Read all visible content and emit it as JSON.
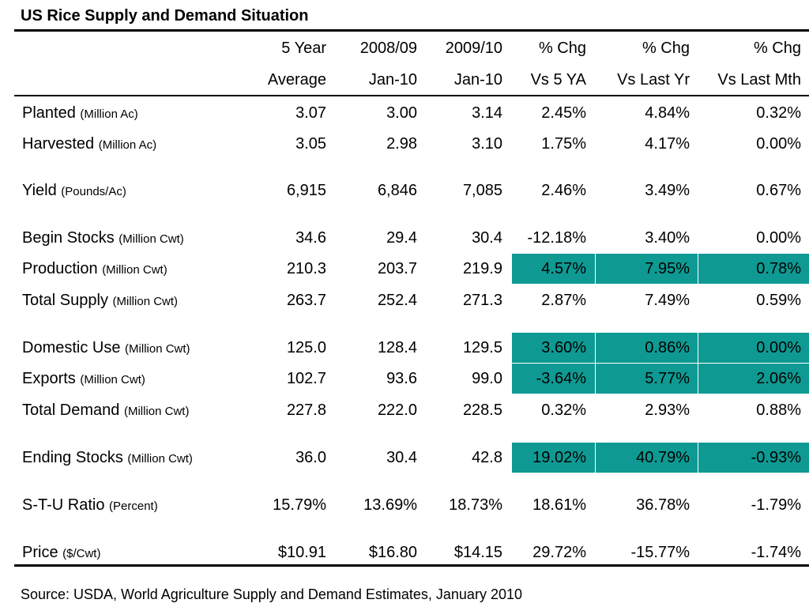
{
  "title": "US Rice Supply and Demand Situation",
  "highlight_color": "#0e9a93",
  "header": {
    "top": [
      "5 Year",
      "2008/09",
      "2009/10",
      "% Chg",
      "% Chg",
      "% Chg"
    ],
    "bottom": [
      "Average",
      "Jan-10",
      "Jan-10",
      "Vs 5 YA",
      "Vs Last Yr",
      "Vs Last Mth"
    ]
  },
  "rows": [
    {
      "label": "Planted",
      "unit": "(Million Ac)",
      "values": [
        "3.07",
        "3.00",
        "3.14",
        "2.45%",
        "4.84%",
        "0.32%"
      ],
      "highlight": false
    },
    {
      "label": "Harvested",
      "unit": "(Million Ac)",
      "values": [
        "3.05",
        "2.98",
        "3.10",
        "1.75%",
        "4.17%",
        "0.00%"
      ],
      "highlight": false
    },
    {
      "label": "Yield",
      "unit": "(Pounds/Ac)",
      "values": [
        "6,915",
        "6,846",
        "7,085",
        "2.46%",
        "3.49%",
        "0.67%"
      ],
      "highlight": false
    },
    {
      "label": "Begin Stocks",
      "unit": "(Million Cwt)",
      "values": [
        "34.6",
        "29.4",
        "30.4",
        "-12.18%",
        "3.40%",
        "0.00%"
      ],
      "highlight": false
    },
    {
      "label": "Production",
      "unit": "(Million Cwt)",
      "values": [
        "210.3",
        "203.7",
        "219.9",
        "4.57%",
        "7.95%",
        "0.78%"
      ],
      "highlight": true
    },
    {
      "label": "Total Supply",
      "unit": "(Million Cwt)",
      "values": [
        "263.7",
        "252.4",
        "271.3",
        "2.87%",
        "7.49%",
        "0.59%"
      ],
      "highlight": false
    },
    {
      "label": "Domestic Use",
      "unit": "(Million Cwt)",
      "values": [
        "125.0",
        "128.4",
        "129.5",
        "3.60%",
        "0.86%",
        "0.00%"
      ],
      "highlight": true
    },
    {
      "label": "Exports",
      "unit": "(Million Cwt)",
      "values": [
        "102.7",
        "93.6",
        "99.0",
        "-3.64%",
        "5.77%",
        "2.06%"
      ],
      "highlight": true
    },
    {
      "label": "Total Demand",
      "unit": "(Million Cwt)",
      "values": [
        "227.8",
        "222.0",
        "228.5",
        "0.32%",
        "2.93%",
        "0.88%"
      ],
      "highlight": false
    },
    {
      "label": "Ending Stocks",
      "unit": "(Million Cwt)",
      "values": [
        "36.0",
        "30.4",
        "42.8",
        "19.02%",
        "40.79%",
        "-0.93%"
      ],
      "highlight": true
    },
    {
      "label": "S-T-U Ratio",
      "unit": "(Percent)",
      "values": [
        "15.79%",
        "13.69%",
        "18.73%",
        "18.61%",
        "36.78%",
        "-1.79%"
      ],
      "highlight": false
    },
    {
      "label": "Price",
      "unit": "($/Cwt)",
      "values": [
        "$10.91",
        "$16.80",
        "$14.15",
        "29.72%",
        "-15.77%",
        "-1.74%"
      ],
      "highlight": false
    }
  ],
  "source": "Source: USDA, World Agriculture Supply and Demand Estimates, January 2010"
}
